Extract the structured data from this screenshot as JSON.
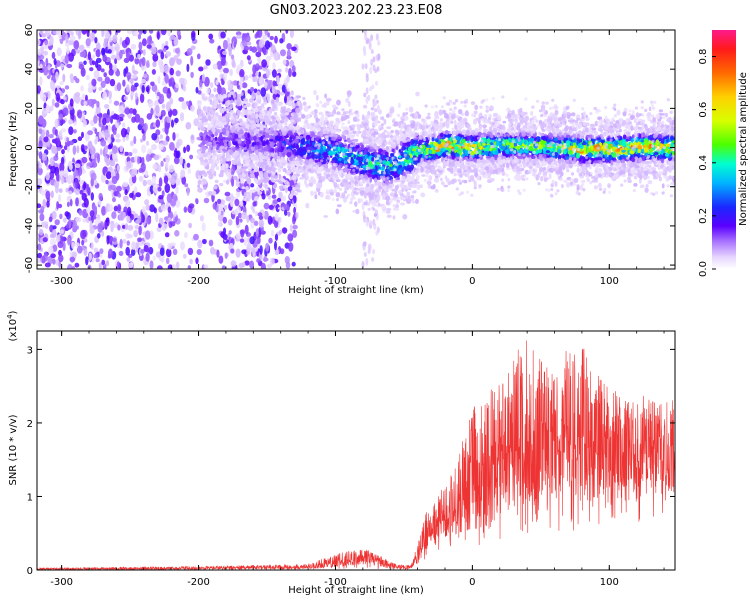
{
  "title": "GN03.2023.202.23.23.E08",
  "chart_data": [
    {
      "type": "heatmap",
      "xlabel": "Height of straight line (km)",
      "ylabel": "Frequency (Hz)",
      "xlim": [
        -318,
        148
      ],
      "ylim": [
        -62,
        60
      ],
      "xticks": [
        -300,
        -200,
        -100,
        0,
        100
      ],
      "yticks": [
        -60,
        -40,
        -20,
        0,
        20,
        40,
        60
      ],
      "colorbar": {
        "label": "Normalized spectral amplitude",
        "range": [
          0,
          0.9
        ],
        "ticks": [
          "0.0",
          "0.2",
          "0.4",
          "0.6",
          "0.8"
        ],
        "colormap": "rainbow"
      },
      "features": [
        {
          "x_range": [
            -318,
            -128
          ],
          "freq_range": [
            -62,
            60
          ],
          "amplitude": 0.05,
          "description": "broadband noise"
        },
        {
          "x_range": [
            -80,
            -68
          ],
          "freq_range": [
            -62,
            60
          ],
          "amplitude": 0.02,
          "description": "faint vertical stripe"
        },
        {
          "x_range": [
            -200,
            148
          ],
          "freq_range": [
            -20,
            10
          ],
          "amplitude": 0.7,
          "description": "narrow band near 0 Hz"
        }
      ],
      "ridge": {
        "x": [
          -200,
          -150,
          -120,
          -100,
          -80,
          -60,
          -40,
          -20,
          0,
          20,
          40,
          60,
          80,
          100,
          120,
          148
        ],
        "freq": [
          4,
          3,
          0,
          -2,
          -7,
          -10,
          -2,
          1,
          0,
          1,
          1,
          0,
          -1,
          -1,
          0,
          0
        ],
        "peak_amplitude": [
          0.15,
          0.2,
          0.3,
          0.4,
          0.45,
          0.45,
          0.55,
          0.8,
          0.75,
          0.6,
          0.55,
          0.6,
          0.75,
          0.8,
          0.75,
          0.7
        ]
      }
    },
    {
      "type": "line",
      "xlabel": "Height of straight line (km)",
      "ylabel": "SNR (10 * v/v)",
      "yscale_label": "(x10",
      "yscale_exp": "4",
      "yscale_close": ")",
      "xlim": [
        -318,
        148
      ],
      "ylim": [
        0,
        3.25
      ],
      "xticks": [
        -300,
        -200,
        -100,
        0,
        100
      ],
      "yticks": [
        0,
        1,
        2,
        3
      ],
      "color": "#ee3333",
      "envelope": {
        "x": [
          -318,
          -250,
          -200,
          -150,
          -120,
          -110,
          -90,
          -80,
          -70,
          -55,
          -45,
          -40,
          -35,
          -25,
          -15,
          -10,
          0,
          10,
          20,
          30,
          40,
          50,
          60,
          70,
          80,
          90,
          100,
          110,
          120,
          130,
          140,
          148
        ],
        "upper": [
          0.03,
          0.04,
          0.05,
          0.07,
          0.08,
          0.15,
          0.27,
          0.3,
          0.22,
          0.08,
          0.06,
          0.35,
          0.75,
          1.0,
          1.35,
          1.6,
          2.2,
          2.4,
          2.6,
          2.95,
          3.15,
          2.85,
          2.75,
          3.05,
          3.1,
          2.7,
          2.55,
          2.3,
          2.35,
          2.4,
          2.35,
          2.3
        ],
        "lower": [
          0.0,
          0.0,
          0.0,
          0.0,
          0.0,
          0.01,
          0.01,
          0.02,
          0.01,
          0.0,
          0.0,
          0.05,
          0.12,
          0.2,
          0.25,
          0.3,
          0.35,
          0.3,
          0.4,
          0.5,
          0.45,
          0.5,
          0.45,
          0.55,
          0.5,
          0.6,
          0.55,
          0.6,
          0.55,
          0.6,
          0.6,
          0.6
        ],
        "mean": [
          0.01,
          0.015,
          0.02,
          0.03,
          0.035,
          0.06,
          0.12,
          0.15,
          0.1,
          0.03,
          0.03,
          0.15,
          0.4,
          0.55,
          0.7,
          0.8,
          1.0,
          1.1,
          1.25,
          1.45,
          1.55,
          1.45,
          1.45,
          1.55,
          1.55,
          1.45,
          1.5,
          1.35,
          1.4,
          1.45,
          1.45,
          1.45
        ]
      }
    }
  ]
}
